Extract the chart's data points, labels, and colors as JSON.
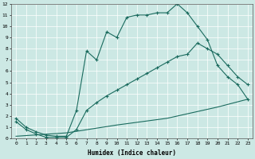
{
  "xlabel": "Humidex (Indice chaleur)",
  "bg_color": "#cce8e4",
  "line_color": "#1a6b5e",
  "line1_x": [
    0,
    1,
    2,
    3,
    4,
    5,
    6,
    7,
    8,
    9,
    10,
    11,
    12,
    13,
    14,
    15,
    16,
    17,
    18,
    19,
    20,
    21,
    22,
    23
  ],
  "line1_y": [
    1.8,
    1.0,
    0.6,
    0.3,
    0.2,
    0.2,
    2.5,
    7.8,
    7.0,
    9.5,
    9.0,
    10.8,
    11.0,
    11.0,
    11.2,
    11.2,
    12.0,
    11.2,
    10.0,
    8.8,
    6.5,
    5.5,
    4.8,
    3.5
  ],
  "line2_x": [
    0,
    1,
    2,
    3,
    4,
    5,
    6,
    7,
    8,
    9,
    10,
    11,
    12,
    13,
    14,
    15,
    16,
    17,
    18,
    19,
    20,
    21,
    22,
    23
  ],
  "line2_y": [
    1.5,
    0.8,
    0.4,
    0.1,
    0.1,
    0.1,
    0.8,
    2.5,
    3.2,
    3.8,
    4.3,
    4.8,
    5.3,
    5.8,
    6.3,
    6.8,
    7.3,
    7.5,
    8.5,
    8.0,
    7.5,
    6.5,
    5.5,
    4.8
  ],
  "line3_x": [
    0,
    5,
    10,
    15,
    20,
    23
  ],
  "line3_y": [
    0.2,
    0.5,
    1.2,
    1.8,
    2.8,
    3.5
  ],
  "xlim": [
    -0.5,
    23.5
  ],
  "ylim": [
    0,
    12
  ],
  "yticks": [
    0,
    1,
    2,
    3,
    4,
    5,
    6,
    7,
    8,
    9,
    10,
    11,
    12
  ],
  "xticks": [
    0,
    1,
    2,
    3,
    4,
    5,
    6,
    7,
    8,
    9,
    10,
    11,
    12,
    13,
    14,
    15,
    16,
    17,
    18,
    19,
    20,
    21,
    22,
    23
  ]
}
